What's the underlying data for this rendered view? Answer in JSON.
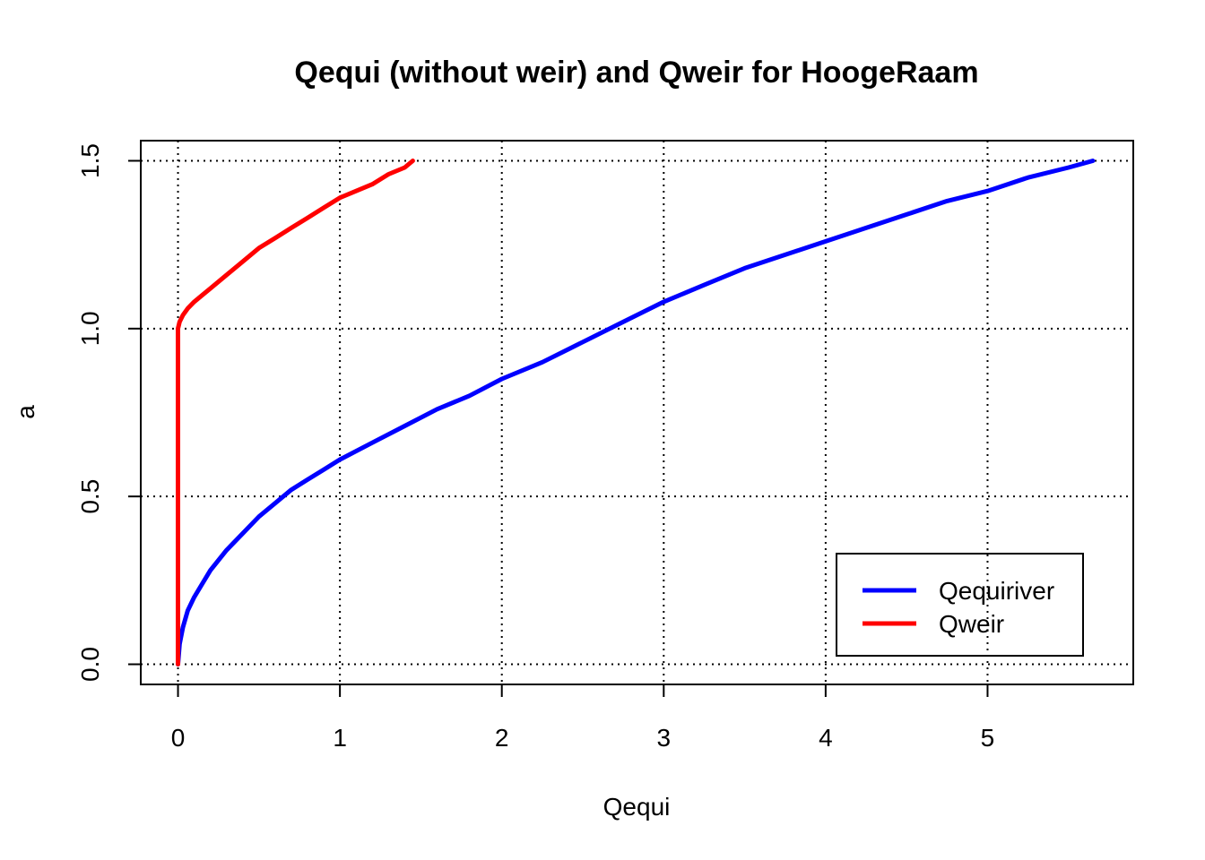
{
  "chart_data": {
    "type": "line",
    "title": "Qequi (without weir) and Qweir for HoogeRaam",
    "xlabel": "Qequi",
    "ylabel": "a",
    "xlim": [
      -0.23,
      5.9
    ],
    "ylim": [
      -0.06,
      1.56
    ],
    "x_ticks": [
      0,
      1,
      2,
      3,
      4,
      5
    ],
    "x_tick_labels": [
      "0",
      "1",
      "2",
      "3",
      "4",
      "5"
    ],
    "y_ticks": [
      0.0,
      0.5,
      1.0,
      1.5
    ],
    "y_tick_labels": [
      "0.0",
      "0.5",
      "1.0",
      "1.5"
    ],
    "grid": true,
    "legend": {
      "placement": "bottom-right",
      "entries": [
        "Qequiriver",
        "Qweir"
      ]
    },
    "series": [
      {
        "name": "Qequiriver",
        "color": "#0000ff",
        "x": [
          0,
          0.01,
          0.03,
          0.06,
          0.1,
          0.15,
          0.2,
          0.3,
          0.4,
          0.5,
          0.6,
          0.7,
          0.8,
          0.9,
          1.0,
          1.2,
          1.4,
          1.6,
          1.8,
          2.0,
          2.25,
          2.5,
          2.75,
          3.0,
          3.25,
          3.5,
          3.75,
          4.0,
          4.25,
          4.5,
          4.75,
          5.0,
          5.25,
          5.5,
          5.65
        ],
        "y": [
          0,
          0.06,
          0.11,
          0.16,
          0.2,
          0.24,
          0.28,
          0.34,
          0.39,
          0.44,
          0.48,
          0.52,
          0.55,
          0.58,
          0.61,
          0.66,
          0.71,
          0.76,
          0.8,
          0.85,
          0.9,
          0.96,
          1.02,
          1.08,
          1.13,
          1.18,
          1.22,
          1.26,
          1.3,
          1.34,
          1.38,
          1.41,
          1.45,
          1.48,
          1.5
        ]
      },
      {
        "name": "Qweir",
        "color": "#ff0000",
        "x": [
          0,
          0,
          0.01,
          0.03,
          0.06,
          0.1,
          0.15,
          0.2,
          0.3,
          0.4,
          0.5,
          0.6,
          0.7,
          0.8,
          0.9,
          1.0,
          1.1,
          1.2,
          1.3,
          1.4,
          1.45
        ],
        "y": [
          0,
          1.0,
          1.02,
          1.04,
          1.06,
          1.08,
          1.1,
          1.12,
          1.16,
          1.2,
          1.24,
          1.27,
          1.3,
          1.33,
          1.36,
          1.39,
          1.41,
          1.43,
          1.46,
          1.48,
          1.5
        ]
      }
    ]
  }
}
